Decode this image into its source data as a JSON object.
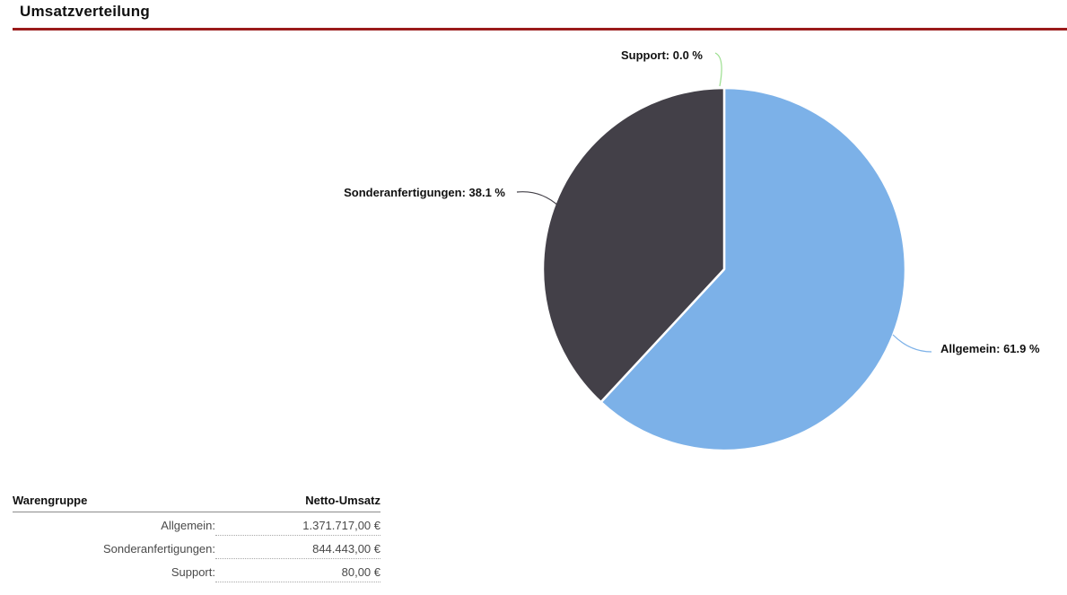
{
  "header": {
    "title": "Umsatzverteilung"
  },
  "accent_color": "#9A1B1B",
  "chart_data": {
    "type": "pie",
    "title": "Umsatzverteilung",
    "start_angle_deg": 0,
    "direction": "clockwise",
    "legend_position": "none",
    "slices": [
      {
        "label": "Allgemein",
        "percent": 61.9,
        "value": "1.371.717,00 €",
        "color": "#7CB1E8",
        "callout": "Allgemein: 61.9 %"
      },
      {
        "label": "Sonderanfertigungen",
        "percent": 38.1,
        "value": "844.443,00 €",
        "color": "#434048",
        "callout": "Sonderanfertigungen: 38.1 %"
      },
      {
        "label": "Support",
        "percent": 0.0,
        "value": "80,00 €",
        "color": "#99DE8C",
        "callout": "Support: 0.0 %"
      }
    ]
  },
  "table": {
    "columns": [
      "Warengruppe",
      "Netto-Umsatz"
    ],
    "rows": [
      {
        "label": "Allgemein:",
        "value": "1.371.717,00 €"
      },
      {
        "label": "Sonderanfertigungen:",
        "value": "844.443,00 €"
      },
      {
        "label": "Support:",
        "value": "80,00 €"
      }
    ]
  }
}
